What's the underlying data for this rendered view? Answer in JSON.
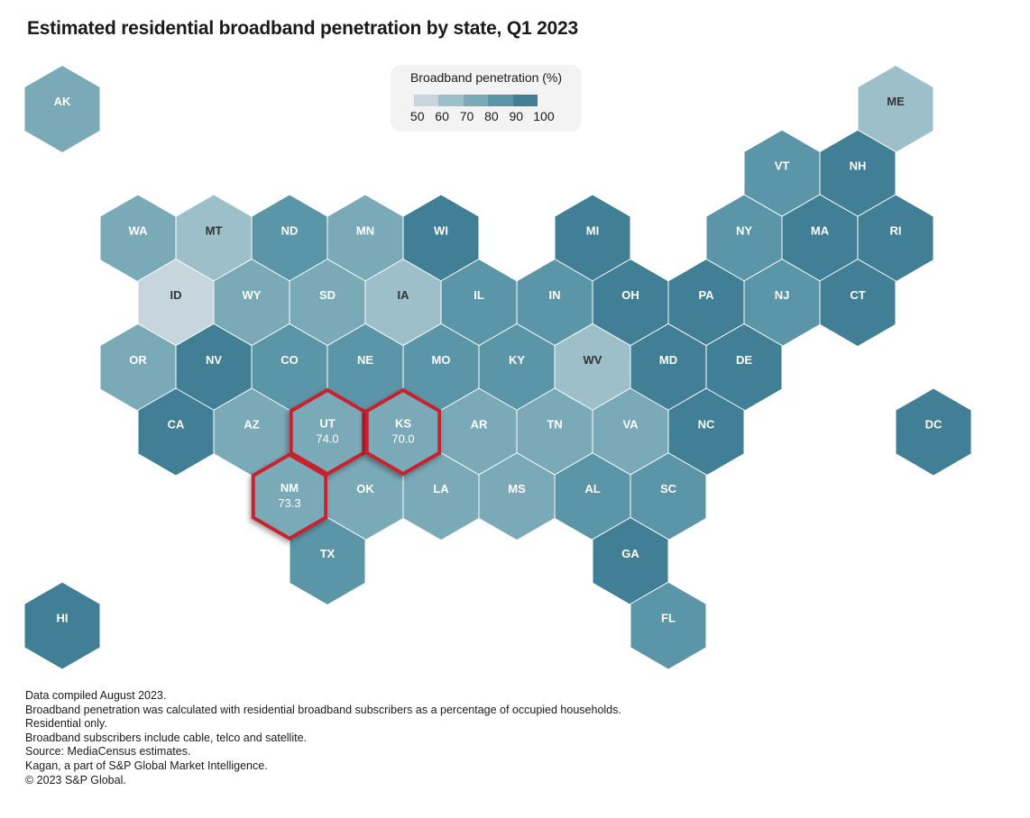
{
  "chart_data": {
    "type": "heatmap",
    "subtype": "hex tile map",
    "title": "Estimated residential broadband penetration by state, Q1 2023",
    "legend": {
      "title": "Broadband penetration (%)",
      "ticks": [
        "50",
        "60",
        "70",
        "80",
        "90",
        "100"
      ],
      "bins": [
        {
          "range": [
            50,
            60
          ],
          "color": "#c6d6dc"
        },
        {
          "range": [
            60,
            70
          ],
          "color": "#9dbfca"
        },
        {
          "range": [
            70,
            80
          ],
          "color": "#7aa9b8"
        },
        {
          "range": [
            80,
            90
          ],
          "color": "#5b95a8"
        },
        {
          "range": [
            90,
            100
          ],
          "color": "#417f96"
        }
      ],
      "placement": "top-center"
    },
    "highlight_color": "#c8202f",
    "states": [
      {
        "code": "AK",
        "bin": "70-80"
      },
      {
        "code": "ME",
        "bin": "60-70"
      },
      {
        "code": "VT",
        "bin": "80-90"
      },
      {
        "code": "NH",
        "bin": "90-100"
      },
      {
        "code": "WA",
        "bin": "70-80"
      },
      {
        "code": "MT",
        "bin": "60-70"
      },
      {
        "code": "ND",
        "bin": "80-90"
      },
      {
        "code": "MN",
        "bin": "70-80"
      },
      {
        "code": "WI",
        "bin": "90-100"
      },
      {
        "code": "MI",
        "bin": "90-100"
      },
      {
        "code": "NY",
        "bin": "80-90"
      },
      {
        "code": "MA",
        "bin": "90-100"
      },
      {
        "code": "RI",
        "bin": "90-100"
      },
      {
        "code": "ID",
        "bin": "50-60"
      },
      {
        "code": "WY",
        "bin": "70-80"
      },
      {
        "code": "SD",
        "bin": "70-80"
      },
      {
        "code": "IA",
        "bin": "60-70"
      },
      {
        "code": "IL",
        "bin": "80-90"
      },
      {
        "code": "IN",
        "bin": "80-90"
      },
      {
        "code": "OH",
        "bin": "90-100"
      },
      {
        "code": "PA",
        "bin": "90-100"
      },
      {
        "code": "NJ",
        "bin": "80-90"
      },
      {
        "code": "CT",
        "bin": "90-100"
      },
      {
        "code": "OR",
        "bin": "70-80"
      },
      {
        "code": "NV",
        "bin": "90-100"
      },
      {
        "code": "CO",
        "bin": "80-90"
      },
      {
        "code": "NE",
        "bin": "80-90"
      },
      {
        "code": "MO",
        "bin": "80-90"
      },
      {
        "code": "KY",
        "bin": "80-90"
      },
      {
        "code": "WV",
        "bin": "60-70"
      },
      {
        "code": "MD",
        "bin": "90-100"
      },
      {
        "code": "DE",
        "bin": "90-100"
      },
      {
        "code": "CA",
        "bin": "90-100"
      },
      {
        "code": "AZ",
        "bin": "70-80"
      },
      {
        "code": "UT",
        "bin": "70-80",
        "value": "74.0",
        "highlighted": true
      },
      {
        "code": "KS",
        "bin": "70-80",
        "value": "70.0",
        "highlighted": true
      },
      {
        "code": "AR",
        "bin": "70-80"
      },
      {
        "code": "TN",
        "bin": "70-80"
      },
      {
        "code": "VA",
        "bin": "70-80"
      },
      {
        "code": "NC",
        "bin": "90-100"
      },
      {
        "code": "DC",
        "bin": "90-100"
      },
      {
        "code": "NM",
        "bin": "70-80",
        "value": "73.3",
        "highlighted": true
      },
      {
        "code": "OK",
        "bin": "70-80"
      },
      {
        "code": "LA",
        "bin": "70-80"
      },
      {
        "code": "MS",
        "bin": "70-80"
      },
      {
        "code": "AL",
        "bin": "80-90"
      },
      {
        "code": "SC",
        "bin": "80-90"
      },
      {
        "code": "TX",
        "bin": "80-90"
      },
      {
        "code": "GA",
        "bin": "90-100"
      },
      {
        "code": "HI",
        "bin": "90-100"
      },
      {
        "code": "FL",
        "bin": "80-90"
      }
    ]
  },
  "notes": [
    "Data compiled August 2023.",
    "Broadband penetration was calculated with residential broadband subscribers as a percentage of occupied households.",
    "Residential only.",
    "Broadband subscribers include cable, telco and satellite.",
    "Source: MediaCensus estimates.",
    "Kagan, a part of S&P Global Market Intelligence.",
    "© 2023 S&P Global."
  ]
}
